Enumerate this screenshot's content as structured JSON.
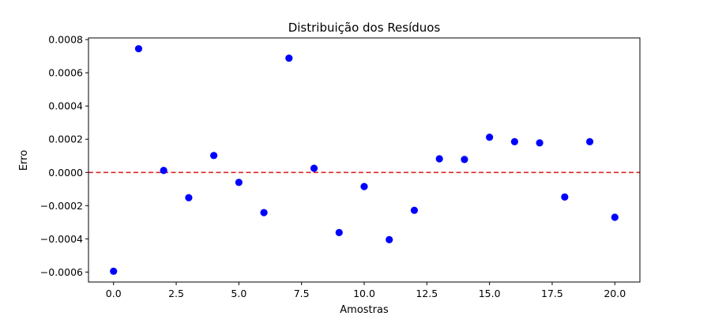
{
  "chart_data": {
    "type": "scatter",
    "title": "Distribuição dos Resíduos",
    "xlabel": "Amostras",
    "ylabel": "Erro",
    "xlim": [
      -1.0,
      21.0
    ],
    "ylim": [
      -0.00066,
      0.00081
    ],
    "grid": false,
    "x_ticks": [
      0.0,
      2.5,
      5.0,
      7.5,
      10.0,
      12.5,
      15.0,
      17.5,
      20.0
    ],
    "x_tick_labels": [
      "0.0",
      "2.5",
      "5.0",
      "7.5",
      "10.0",
      "12.5",
      "15.0",
      "17.5",
      "20.0"
    ],
    "y_ticks": [
      -0.0006,
      -0.0004,
      -0.0002,
      0.0,
      0.0002,
      0.0004,
      0.0006,
      0.0008
    ],
    "y_tick_labels": [
      "−0.0006",
      "−0.0004",
      "−0.0002",
      "0.0000",
      "0.0002",
      "0.0004",
      "0.0006",
      "0.0008"
    ],
    "reference_line": {
      "y": 0.0,
      "color": "#d62728",
      "style": "dashed"
    },
    "series": [
      {
        "color": "#0000ff",
        "x": [
          0,
          1,
          2,
          3,
          4,
          5,
          6,
          7,
          8,
          9,
          10,
          11,
          12,
          13,
          14,
          15,
          16,
          17,
          18,
          19,
          20
        ],
        "y": [
          -0.000595,
          0.000745,
          1.2e-05,
          -0.000152,
          0.000102,
          -6e-05,
          -0.000242,
          0.000688,
          2.5e-05,
          -0.000362,
          -8.5e-05,
          -0.000405,
          -0.000228,
          8.2e-05,
          7.8e-05,
          0.000212,
          0.000185,
          0.000178,
          -0.000148,
          0.000185,
          -0.00027
        ]
      }
    ]
  }
}
